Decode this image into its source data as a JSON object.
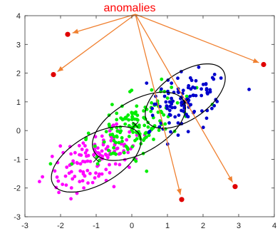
{
  "chart_data": {
    "type": "scatter",
    "title": "anomalies",
    "xlabel": "",
    "ylabel": "",
    "xlim": [
      -3,
      4
    ],
    "ylim": [
      -3,
      4
    ],
    "xticks": [
      "-3",
      "-2",
      "-1",
      "0",
      "1",
      "2",
      "3",
      "4"
    ],
    "yticks": [
      "-3",
      "-2",
      "-1",
      "0",
      "1",
      "2",
      "3",
      "4"
    ],
    "grid": false,
    "legend": "none",
    "colors": {
      "cluster_magenta": "#ff00ff",
      "cluster_green": "#00ee00",
      "cluster_blue": "#0000cc",
      "anomaly": "#e00000",
      "arrow": "#f08030",
      "title": "#ff0000",
      "ellipse": "#000000"
    },
    "clusters": [
      {
        "key": "magenta",
        "color": "#ff00ff",
        "center": [
          -1.0,
          -1.0
        ],
        "ellipse": {
          "cx": -1.0,
          "cy": -1.0,
          "rx": 1.5,
          "ry": 0.8,
          "angle_deg": -40
        }
      },
      {
        "key": "green",
        "color": "#00ee00",
        "center": [
          0.1,
          0.2
        ],
        "ellipse": {
          "cx": 0.2,
          "cy": 0.15,
          "rx": 1.55,
          "ry": 0.85,
          "angle_deg": -40
        }
      },
      {
        "key": "blue",
        "color": "#0000cc",
        "center": [
          1.5,
          1.0
        ],
        "ellipse": {
          "cx": 1.5,
          "cy": 1.2,
          "rx": 1.4,
          "ry": 0.75,
          "angle_deg": -45
        }
      }
    ],
    "anomalies": [
      {
        "x": -1.8,
        "y": 3.35
      },
      {
        "x": -2.2,
        "y": 1.95
      },
      {
        "x": 3.7,
        "y": 2.3
      },
      {
        "x": 1.4,
        "y": -2.4
      },
      {
        "x": 2.9,
        "y": -1.95
      }
    ],
    "arrows_from": [
      0.1,
      4.05
    ]
  }
}
